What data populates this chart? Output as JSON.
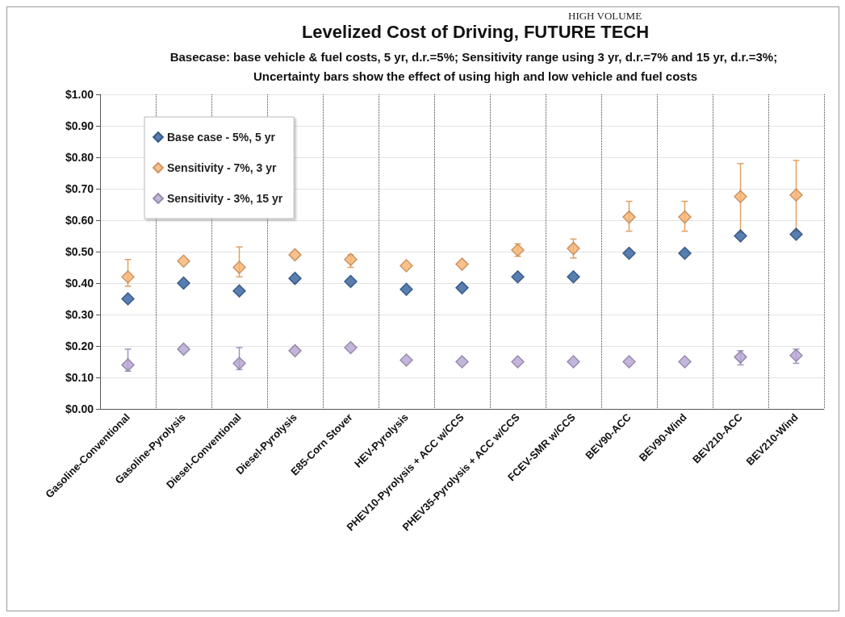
{
  "chart_data": {
    "type": "scatter",
    "title": "Levelized Cost of Driving, FUTURE TECH",
    "subtitle": "Basecase: base vehicle & fuel costs, 5 yr, d.r.=5%; Sensitivity range using 3 yr, d.r.=7% and 15 yr, d.r.=3%; Uncertainty bars show the effect of using high and low vehicle and fuel costs",
    "annotations": [
      "HIGH VOLUME"
    ],
    "categories": [
      "Gasoline-Conventional",
      "Gasoline-Pyrolysis",
      "Diesel-Conventional",
      "Diesel-Pyrolysis",
      "E85-Corn Stover",
      "HEV-Pyrolysis",
      "PHEV10-Pyrolysis + ACC w/CCS",
      "PHEV35-Pyrolysis + ACC w/CCS",
      "FCEV-SMR w/CCS",
      "BEV90-ACC",
      "BEV90-Wind",
      "BEV210-ACC",
      "BEV210-Wind"
    ],
    "series": [
      {
        "name": "Base case - 5%, 5 yr",
        "color": "#2f5f9e",
        "values": [
          0.35,
          0.4,
          0.375,
          0.415,
          0.405,
          0.38,
          0.385,
          0.42,
          0.42,
          0.495,
          0.495,
          0.55,
          0.555
        ]
      },
      {
        "name": "Sensitivity - 7%, 3 yr",
        "color": "#f9b26e",
        "values": [
          0.42,
          0.47,
          0.45,
          0.49,
          0.475,
          0.455,
          0.46,
          0.505,
          0.51,
          0.61,
          0.61,
          0.675,
          0.68
        ],
        "errors": [
          [
            0.39,
            0.475
          ],
          null,
          [
            0.42,
            0.515
          ],
          null,
          [
            0.45,
            0.49
          ],
          null,
          null,
          [
            0.485,
            0.525
          ],
          [
            0.48,
            0.54
          ],
          [
            0.565,
            0.66
          ],
          [
            0.565,
            0.66
          ],
          [
            0.56,
            0.78
          ],
          [
            0.565,
            0.79
          ]
        ]
      },
      {
        "name": "Sensitivity - 3%, 15 yr",
        "color": "#b4a3d3",
        "values": [
          0.14,
          0.19,
          0.145,
          0.185,
          0.195,
          0.155,
          0.15,
          0.15,
          0.15,
          0.15,
          0.15,
          0.165,
          0.17
        ],
        "errors": [
          [
            0.12,
            0.19
          ],
          null,
          [
            0.125,
            0.195
          ],
          null,
          null,
          null,
          null,
          null,
          null,
          null,
          null,
          [
            0.14,
            0.185
          ],
          [
            0.145,
            0.19
          ]
        ]
      }
    ],
    "ylim": [
      0,
      1
    ],
    "yticks": [
      {
        "value": 0,
        "label": "$0.00"
      },
      {
        "value": 0.1,
        "label": "$0.10"
      },
      {
        "value": 0.2,
        "label": "$0.20"
      },
      {
        "value": 0.3,
        "label": "$0.30"
      },
      {
        "value": 0.4,
        "label": "$0.40"
      },
      {
        "value": 0.5,
        "label": "$0.50"
      },
      {
        "value": 0.6,
        "label": "$0.60"
      },
      {
        "value": 0.7,
        "label": "$0.70"
      },
      {
        "value": 0.8,
        "label": "$0.80"
      },
      {
        "value": 0.9,
        "label": "$0.90"
      },
      {
        "value": 1,
        "label": "$1.00"
      }
    ],
    "grid": true,
    "legend": "top left",
    "marker": "diamond"
  }
}
